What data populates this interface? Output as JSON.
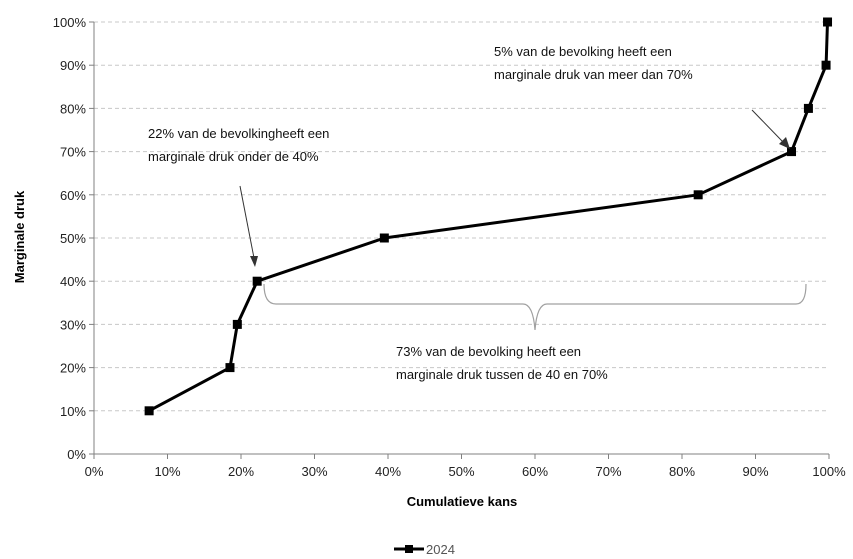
{
  "chart_data": {
    "type": "line",
    "xlabel": "Cumulatieve kans",
    "ylabel": "Marginale druk",
    "xlim": [
      0,
      100
    ],
    "ylim": [
      0,
      100
    ],
    "x_ticks": [
      "0%",
      "10%",
      "20%",
      "30%",
      "40%",
      "50%",
      "60%",
      "70%",
      "80%",
      "90%",
      "100%"
    ],
    "y_ticks": [
      "0%",
      "10%",
      "20%",
      "30%",
      "40%",
      "50%",
      "60%",
      "70%",
      "80%",
      "90%",
      "100%"
    ],
    "grid": "horizontal dashed",
    "legend_position": "bottom",
    "series": [
      {
        "name": "2024",
        "color": "#000000",
        "marker": "square",
        "x": [
          7.5,
          18.5,
          19.5,
          22.2,
          39.5,
          82.2,
          94.9,
          97.2,
          99.6,
          99.8
        ],
        "y": [
          10,
          20,
          30,
          40,
          50,
          60,
          70,
          80,
          90,
          100
        ]
      }
    ],
    "annotations": [
      {
        "lines": [
          "22% van de bevolkingheeft een",
          "marginale druk onder de 40%"
        ]
      },
      {
        "lines": [
          "5% van de bevolking heeft een",
          "marginale druk van meer dan 70%"
        ]
      },
      {
        "lines": [
          "73% van de bevolking heeft een",
          "marginale druk tussen de 40 en 70%"
        ]
      }
    ]
  }
}
